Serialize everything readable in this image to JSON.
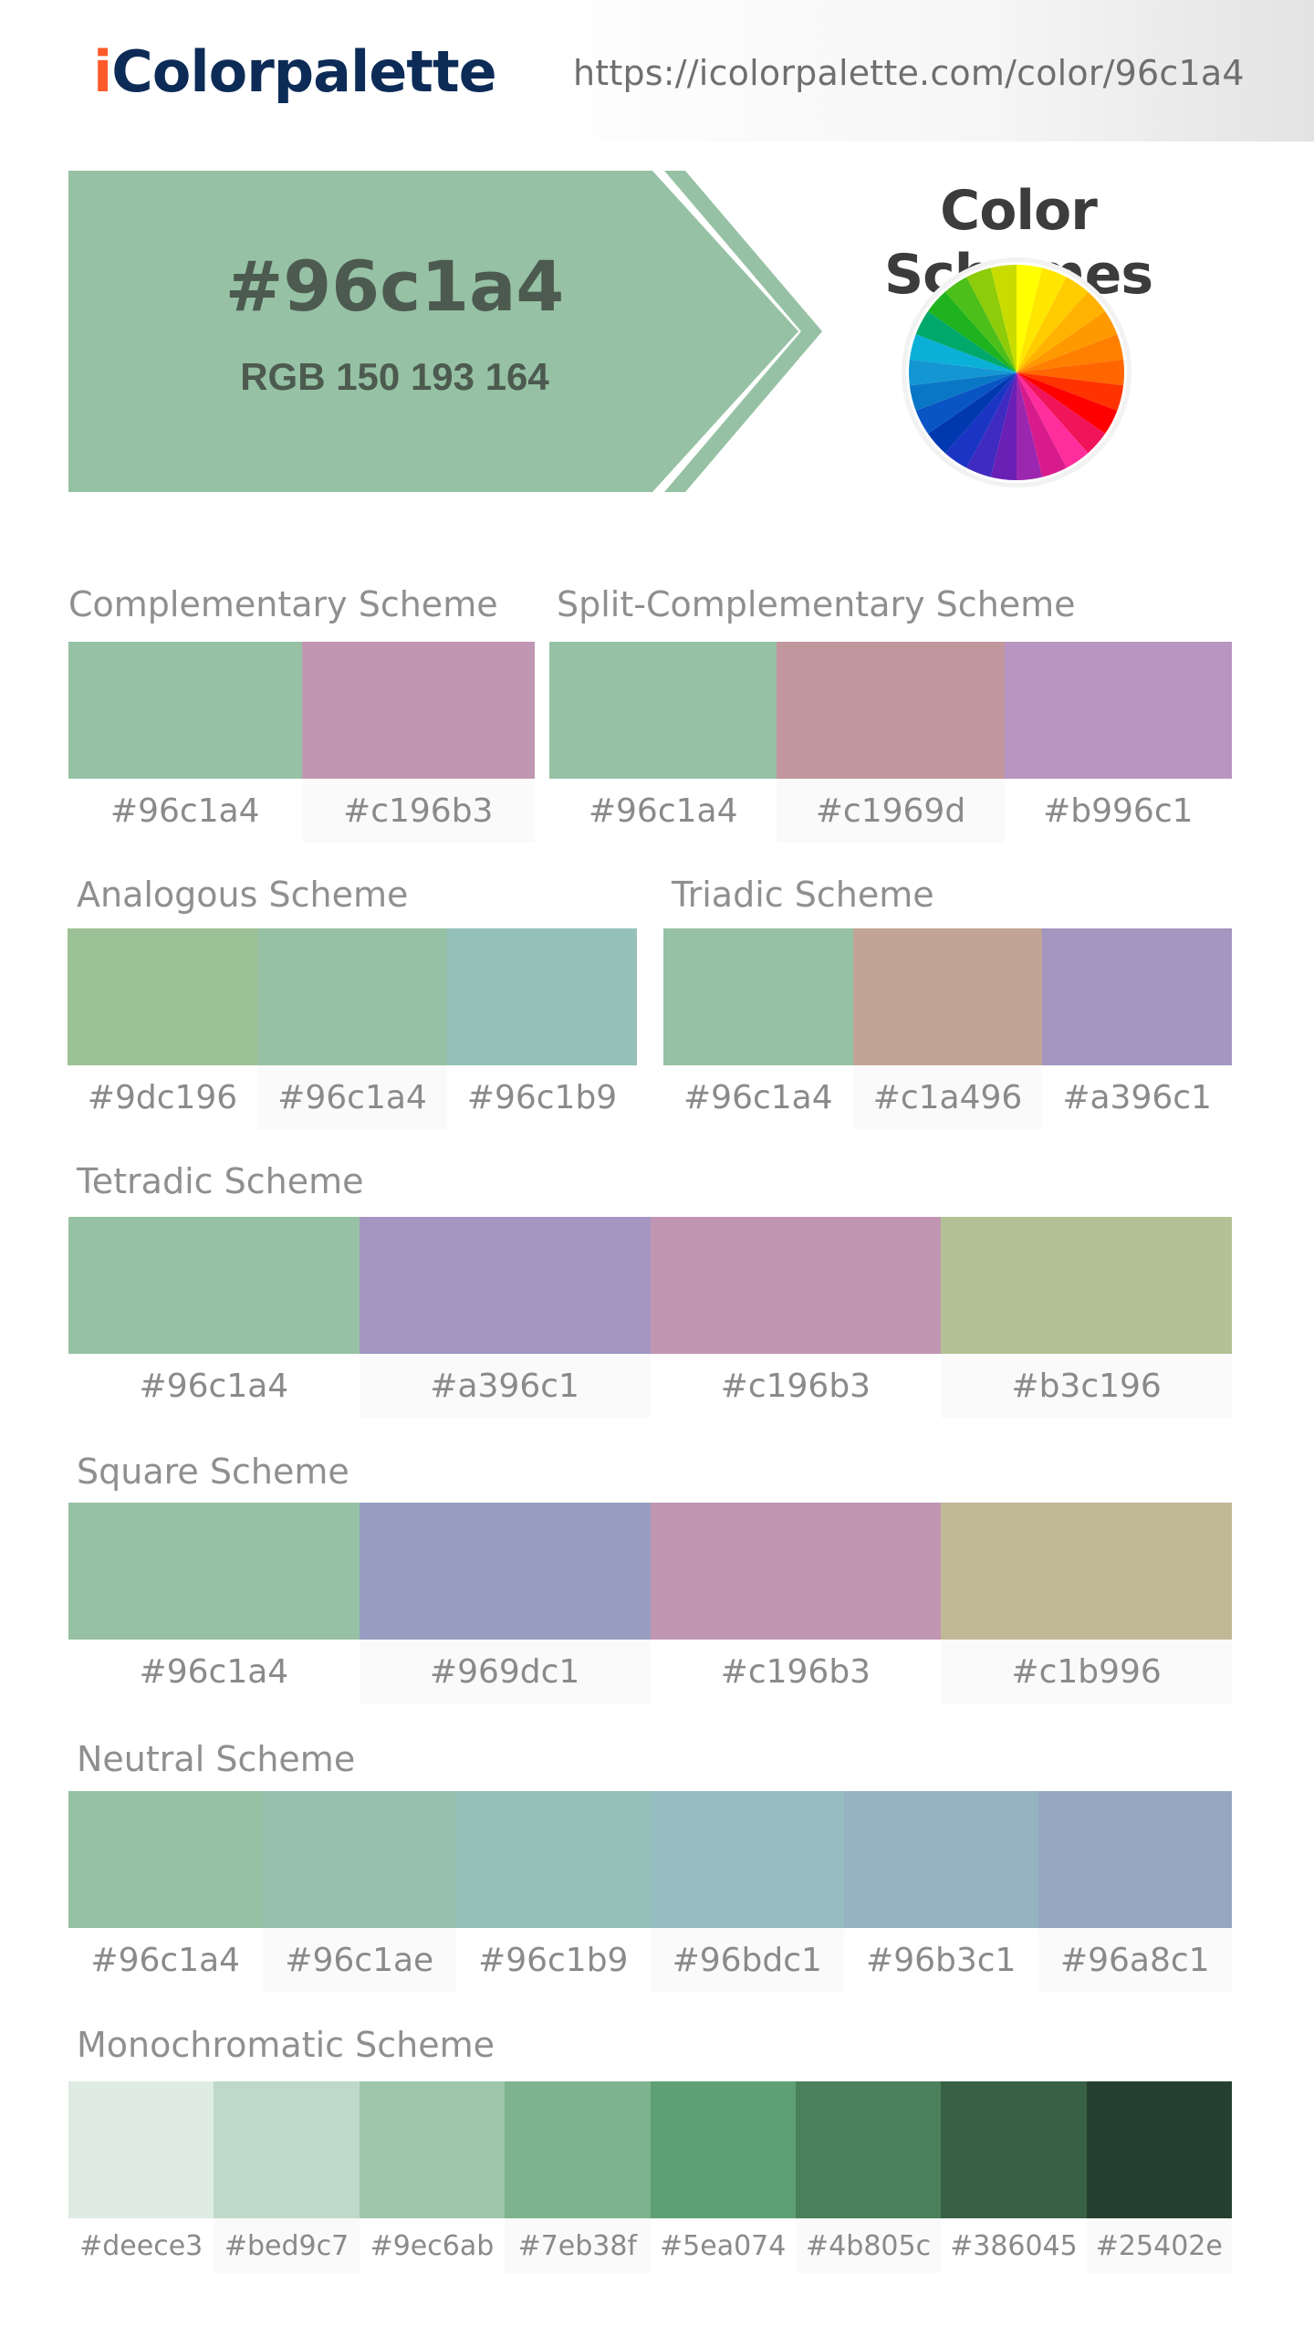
{
  "logo": {
    "first": "i",
    "rest": "Colorpalette"
  },
  "url": "https://icolorpalette.com/color/96c1a4",
  "hero": {
    "hex": "#96c1a4",
    "rgb": "RGB 150 193 164",
    "color": "#96c1a4"
  },
  "schemes_title": "Color Schemes",
  "wheel_icon": "color-wheel-icon",
  "wheel_colors": [
    "#ffff00",
    "#ffe600",
    "#ffcc00",
    "#ffb300",
    "#ff9900",
    "#ff8000",
    "#ff6600",
    "#ff3300",
    "#ff0000",
    "#f0145a",
    "#ff2e9c",
    "#d81b8c",
    "#9b27b0",
    "#6a1fb5",
    "#3f2bc0",
    "#1a35c4",
    "#0038b0",
    "#0a55c4",
    "#0a77c6",
    "#1496d2",
    "#0ab0d8",
    "#00a86b",
    "#1fb31f",
    "#4cbf1a",
    "#8ecb0a",
    "#c8dc00"
  ],
  "sections": [
    {
      "key": "complementary",
      "title": "Complementary Scheme",
      "colors": [
        "#96c1a4",
        "#c196b3"
      ]
    },
    {
      "key": "split",
      "title": "Split-Complementary Scheme",
      "colors": [
        "#96c1a4",
        "#c1969d",
        "#b996c1"
      ]
    },
    {
      "key": "analogous",
      "title": "Analogous Scheme",
      "colors": [
        "#9dc196",
        "#96c1a4",
        "#96c1b9"
      ]
    },
    {
      "key": "triadic",
      "title": "Triadic Scheme",
      "colors": [
        "#96c1a4",
        "#c1a496",
        "#a396c1"
      ]
    },
    {
      "key": "tetradic",
      "title": "Tetradic Scheme",
      "colors": [
        "#96c1a4",
        "#a396c1",
        "#c196b3",
        "#b3c196"
      ]
    },
    {
      "key": "square",
      "title": "Square Scheme",
      "colors": [
        "#96c1a4",
        "#969dc1",
        "#c196b3",
        "#c1b996"
      ]
    },
    {
      "key": "neutral",
      "title": "Neutral Scheme",
      "colors": [
        "#96c1a4",
        "#96c1ae",
        "#96c1b9",
        "#96bdc1",
        "#96b3c1",
        "#96a8c1"
      ]
    },
    {
      "key": "monochromatic",
      "title": "Monochromatic Scheme",
      "colors": [
        "#deece3",
        "#bed9c7",
        "#9ec6ab",
        "#7eb38f",
        "#5ea074",
        "#4b805c",
        "#386045",
        "#25402e"
      ]
    }
  ]
}
